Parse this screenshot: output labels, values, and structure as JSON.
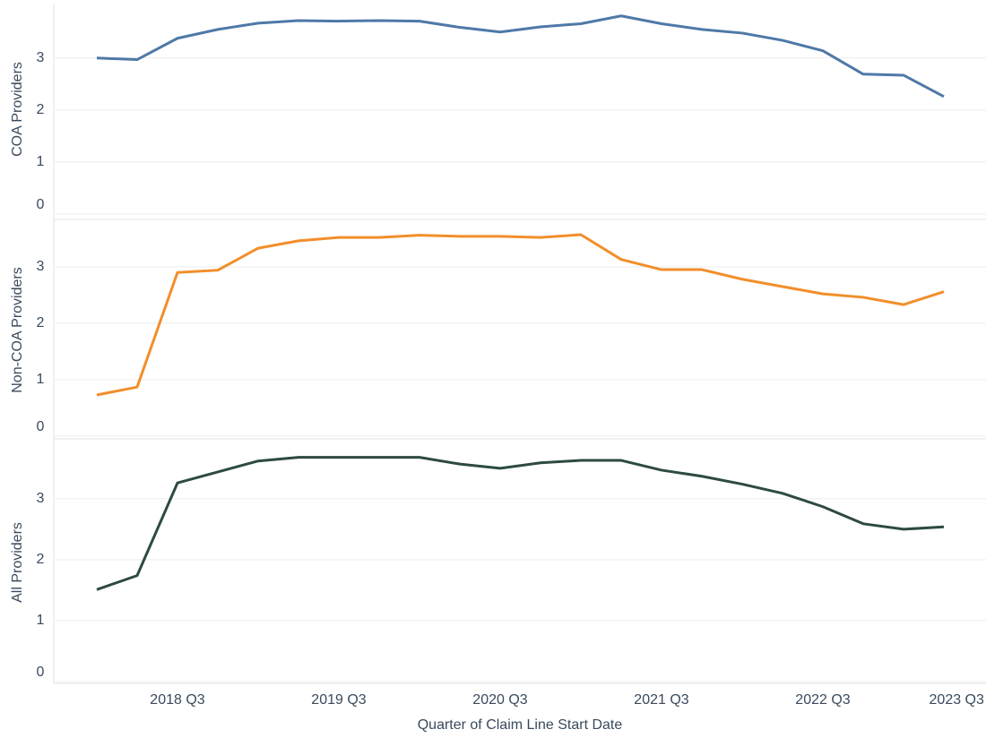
{
  "chart_data": [
    {
      "type": "line",
      "y_label": "COA Providers",
      "color": "#4e79a7",
      "grid": true,
      "ylim": [
        0,
        4.03
      ],
      "yticks": [
        0,
        1,
        2,
        3
      ],
      "values": [
        3.0,
        2.97,
        3.38,
        3.55,
        3.67,
        3.72,
        3.71,
        3.72,
        3.71,
        3.59,
        3.5,
        3.6,
        3.66,
        3.81,
        3.66,
        3.55,
        3.48,
        3.34,
        3.14,
        2.69,
        2.67,
        2.26,
        null
      ]
    },
    {
      "type": "line",
      "y_label": "Non-COA Providers",
      "color": "#f28e2b",
      "grid": true,
      "ylim": [
        0,
        3.76
      ],
      "yticks": [
        0,
        1,
        2,
        3
      ],
      "values": [
        0.73,
        0.87,
        2.9,
        2.94,
        3.33,
        3.46,
        3.52,
        3.52,
        3.56,
        3.54,
        3.54,
        3.52,
        3.57,
        3.13,
        2.95,
        2.95,
        2.78,
        2.65,
        2.52,
        2.46,
        2.33,
        2.56,
        null
      ]
    },
    {
      "type": "line",
      "y_label": "All Providers",
      "color": "#2d4a42",
      "grid": true,
      "ylim": [
        0,
        3.91
      ],
      "yticks": [
        0,
        1,
        2,
        3
      ],
      "values": [
        1.51,
        1.74,
        3.26,
        3.44,
        3.62,
        3.68,
        3.68,
        3.68,
        3.68,
        3.57,
        3.5,
        3.59,
        3.63,
        3.63,
        3.47,
        3.37,
        3.24,
        3.09,
        2.87,
        2.59,
        2.5,
        2.54,
        null
      ],
      "x_label": "Quarter of Claim Line Start Date",
      "categories": [
        null,
        null,
        "2018 Q3",
        null,
        null,
        null,
        "2019 Q3",
        null,
        null,
        null,
        "2020 Q3",
        null,
        null,
        null,
        "2021 Q3",
        null,
        null,
        null,
        "2022 Q3",
        null,
        null,
        null,
        "2023 Q3"
      ]
    }
  ]
}
